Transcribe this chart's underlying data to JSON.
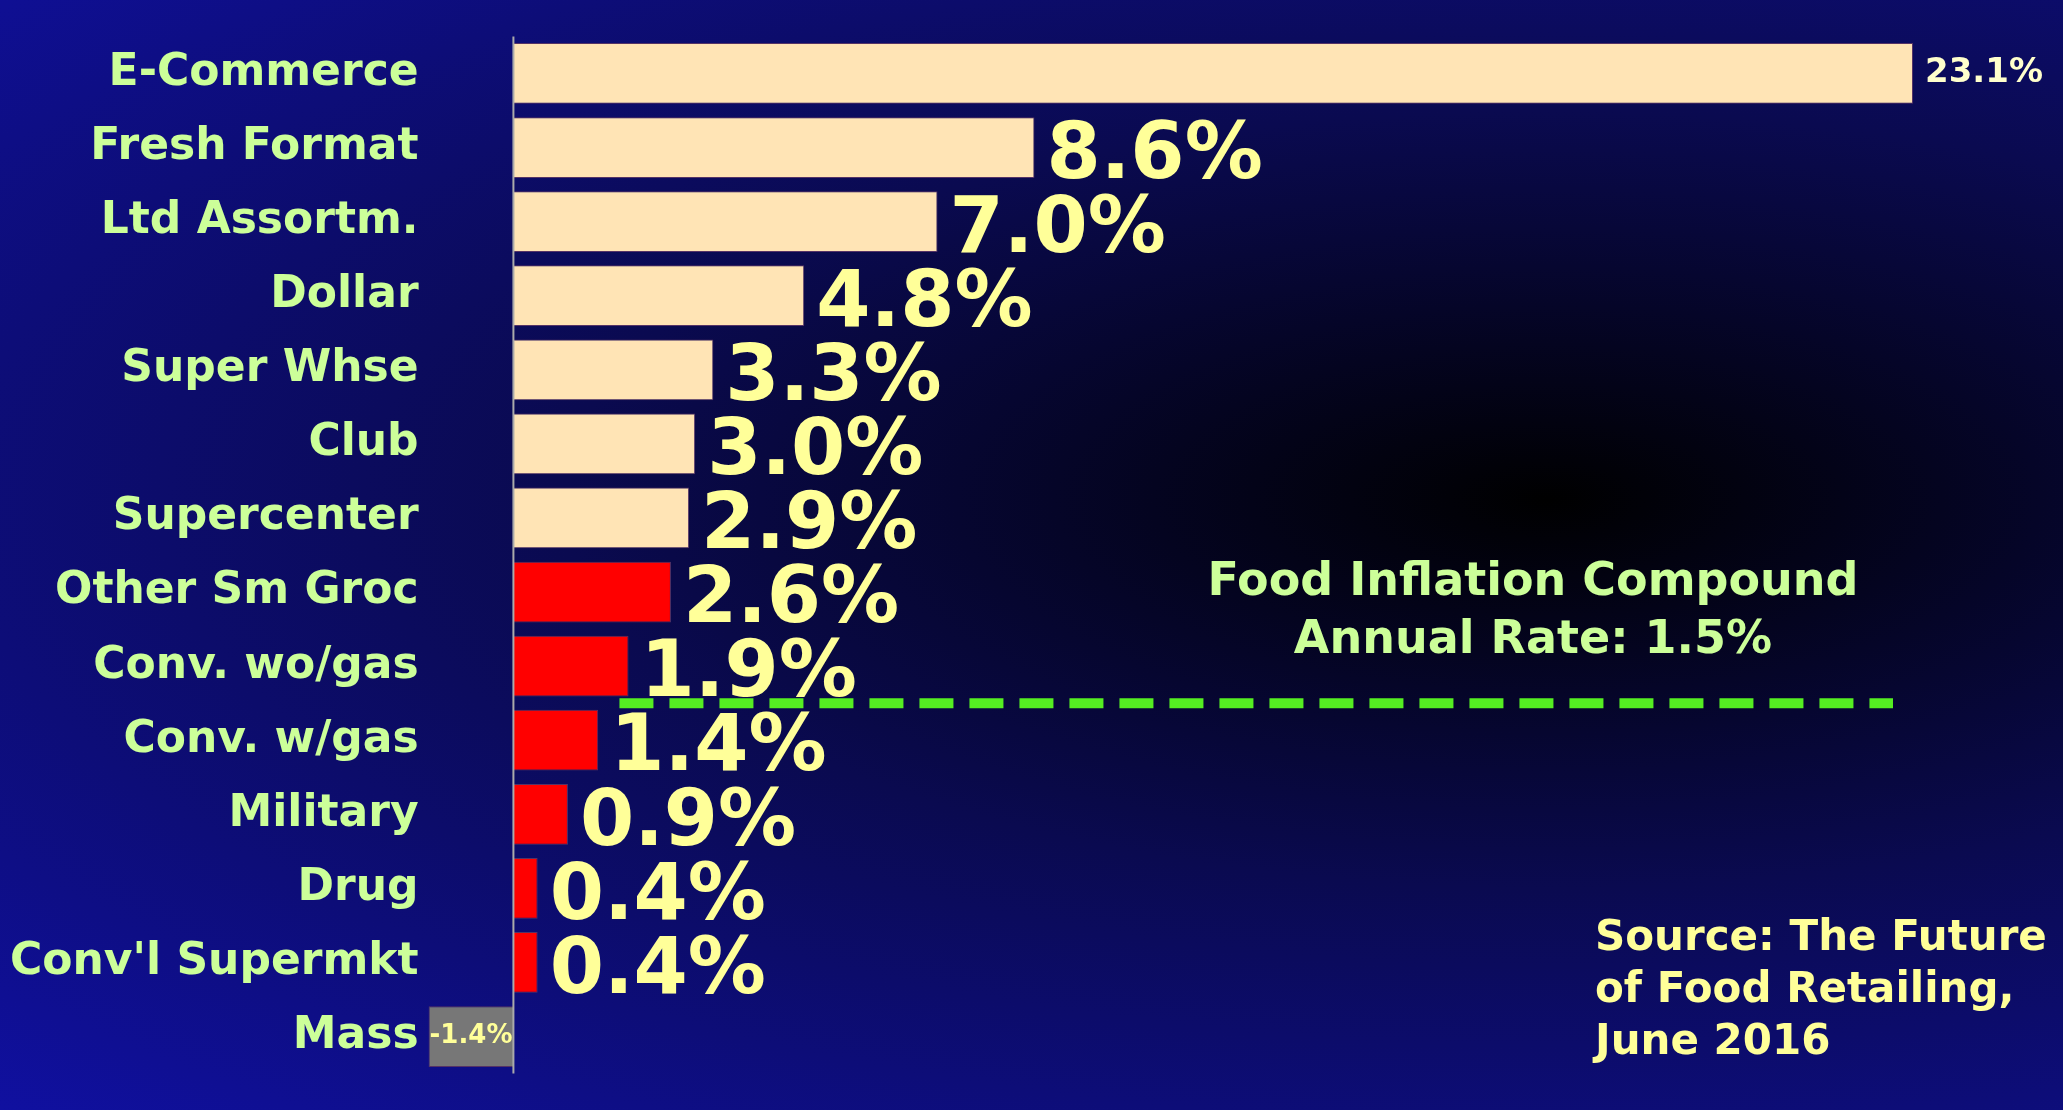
{
  "chart_data": {
    "type": "bar",
    "orientation": "horizontal",
    "categories": [
      "E-Commerce",
      "Fresh Format",
      "Ltd Assortm.",
      "Dollar",
      "Super Whse",
      "Club",
      "Supercenter",
      "Other Sm Groc",
      "Conv. wo/gas",
      "Conv. w/gas",
      "Military",
      "Drug",
      "Conv'l Supermkt",
      "Mass"
    ],
    "values": [
      23.1,
      8.6,
      7.0,
      4.8,
      3.3,
      3.0,
      2.9,
      2.6,
      1.9,
      1.4,
      0.9,
      0.4,
      0.4,
      -1.4
    ],
    "colors": [
      "#ffe4b5",
      "#ffe4b5",
      "#ffe4b5",
      "#ffe4b5",
      "#ffe4b5",
      "#ffe4b5",
      "#ffe4b5",
      "#ff0000",
      "#ff0000",
      "#ff0000",
      "#ff0000",
      "#ff0000",
      "#ff0000",
      "#777777"
    ],
    "value_labels": [
      "23.1%",
      "8.6%",
      "7.0%",
      "4.8%",
      "3.3%",
      "3.0%",
      "2.9%",
      "2.6%",
      "1.9%",
      "1.4%",
      "0.9%",
      "0.4%",
      "0.4%",
      "-1.4%"
    ],
    "tick_labels": "y",
    "grid": false,
    "legend": false,
    "ref_lines": [
      {
        "axis": "y",
        "value": "Conv. wo/gas",
        "label": "Food Inflation Compound Annual Rate: 1.5%",
        "color": "#55ee22",
        "line_style": "dashed"
      }
    ],
    "annotations": [
      "Source: The Future of Food Retailing, June 2016"
    ]
  }
}
